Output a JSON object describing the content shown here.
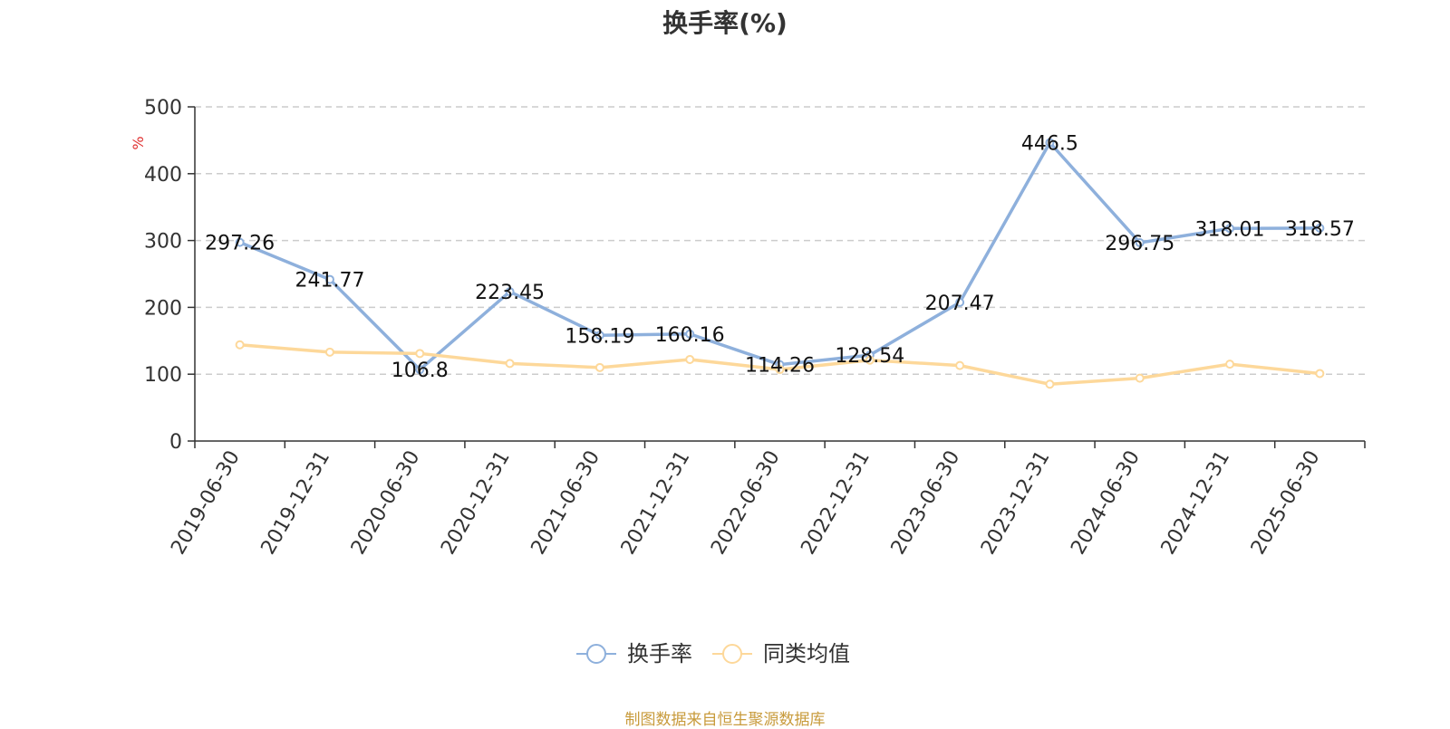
{
  "source_note": "制图数据来自恒生聚源数据库",
  "colors": {
    "series_main": "#8eb0dc",
    "series_avg": "#fdd89a",
    "unit_label": "#e03030",
    "axis": "#333333",
    "grid": "#cccccc"
  },
  "chart_data": {
    "type": "line",
    "title": "换手率(%)",
    "ylabel": "%",
    "ylim": [
      0,
      500
    ],
    "yticks": [
      0,
      100,
      200,
      300,
      400,
      500
    ],
    "grid": "horizontal dashed",
    "legend_position": "bottom-center",
    "categories": [
      "2019-06-30",
      "2019-12-31",
      "2020-06-30",
      "2020-12-31",
      "2021-06-30",
      "2021-12-31",
      "2022-06-30",
      "2022-12-31",
      "2023-06-30",
      "2023-12-31",
      "2024-06-30",
      "2024-12-31",
      "2025-06-30"
    ],
    "series": [
      {
        "name": "换手率",
        "color": "#8eb0dc",
        "values": [
          297.26,
          241.77,
          106.8,
          223.45,
          158.19,
          160.16,
          114.26,
          128.54,
          207.47,
          446.5,
          296.75,
          318.01,
          318.57
        ],
        "labels": [
          "297.26",
          "241.77",
          "106.8",
          "223.45",
          "158.19",
          "160.16",
          "114.26",
          "128.54",
          "207.47",
          "446.5",
          "296.75",
          "318.01",
          "318.57"
        ]
      },
      {
        "name": "同类均值",
        "color": "#fdd89a",
        "values": [
          144,
          133,
          131,
          116,
          110,
          122,
          107,
          121,
          113,
          85,
          94,
          115,
          101
        ]
      }
    ]
  }
}
